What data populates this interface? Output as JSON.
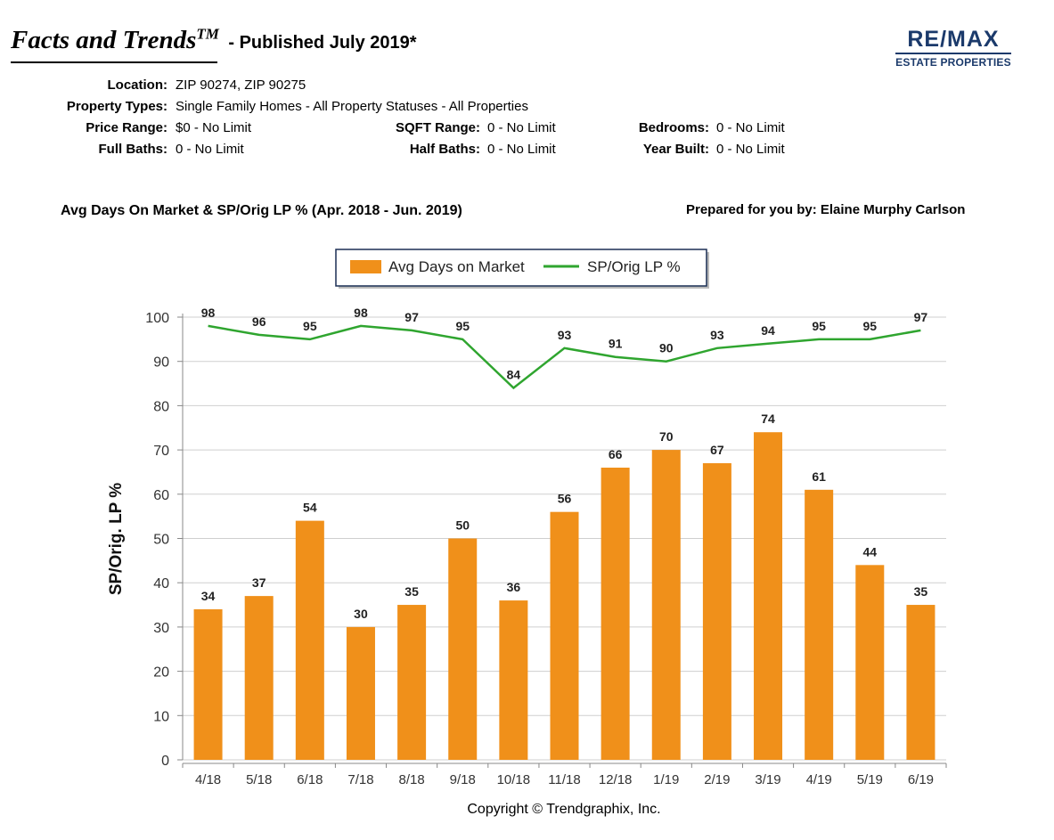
{
  "header": {
    "title": "Facts and Trends",
    "title_mark": "TM",
    "subtitle": "- Published July 2019*"
  },
  "logo": {
    "main": "RE/MAX",
    "sub": "ESTATE PROPERTIES",
    "color": "#1b3a6b"
  },
  "criteria": {
    "location_label": "Location:",
    "location_value": "ZIP 90274, ZIP 90275",
    "property_types_label": "Property Types:",
    "property_types_value": "Single Family Homes - All Property Statuses - All Properties",
    "price_range_label": "Price Range:",
    "price_range_value": "$0 - No Limit",
    "sqft_range_label": "SQFT Range:",
    "sqft_range_value": "0 - No Limit",
    "bedrooms_label": "Bedrooms:",
    "bedrooms_value": "0 - No Limit",
    "full_baths_label": "Full Baths:",
    "full_baths_value": "0 - No Limit",
    "half_baths_label": "Half Baths:",
    "half_baths_value": "0 - No Limit",
    "year_built_label": "Year Built:",
    "year_built_value": "0 - No Limit"
  },
  "chart_heading": "Avg Days On Market & SP/Orig LP % (Apr. 2018 - Jun. 2019)",
  "prepared_by": "Prepared for you by: Elaine Murphy Carlson",
  "copyright": "Copyright © Trendgraphix, Inc.",
  "chart_data": {
    "type": "bar",
    "categories": [
      "4/18",
      "5/18",
      "6/18",
      "7/18",
      "8/18",
      "9/18",
      "10/18",
      "11/18",
      "12/18",
      "1/19",
      "2/19",
      "3/19",
      "4/19",
      "5/19",
      "6/19"
    ],
    "series": [
      {
        "name": "Avg Days on Market",
        "type": "bar",
        "color": "#f0901a",
        "values": [
          34,
          37,
          54,
          30,
          35,
          50,
          36,
          56,
          66,
          70,
          67,
          74,
          61,
          44,
          35
        ]
      },
      {
        "name": "SP/Orig LP %",
        "type": "line",
        "color": "#2fa52f",
        "values": [
          98,
          96,
          95,
          98,
          97,
          95,
          84,
          93,
          91,
          90,
          93,
          94,
          95,
          95,
          97
        ]
      }
    ],
    "ylabel": "SP/Orig. LP %",
    "xlabel": "",
    "ylim": [
      0,
      100
    ],
    "yticks": [
      0,
      10,
      20,
      30,
      40,
      50,
      60,
      70,
      80,
      90,
      100
    ],
    "grid": true,
    "legend_position": "top-center"
  }
}
